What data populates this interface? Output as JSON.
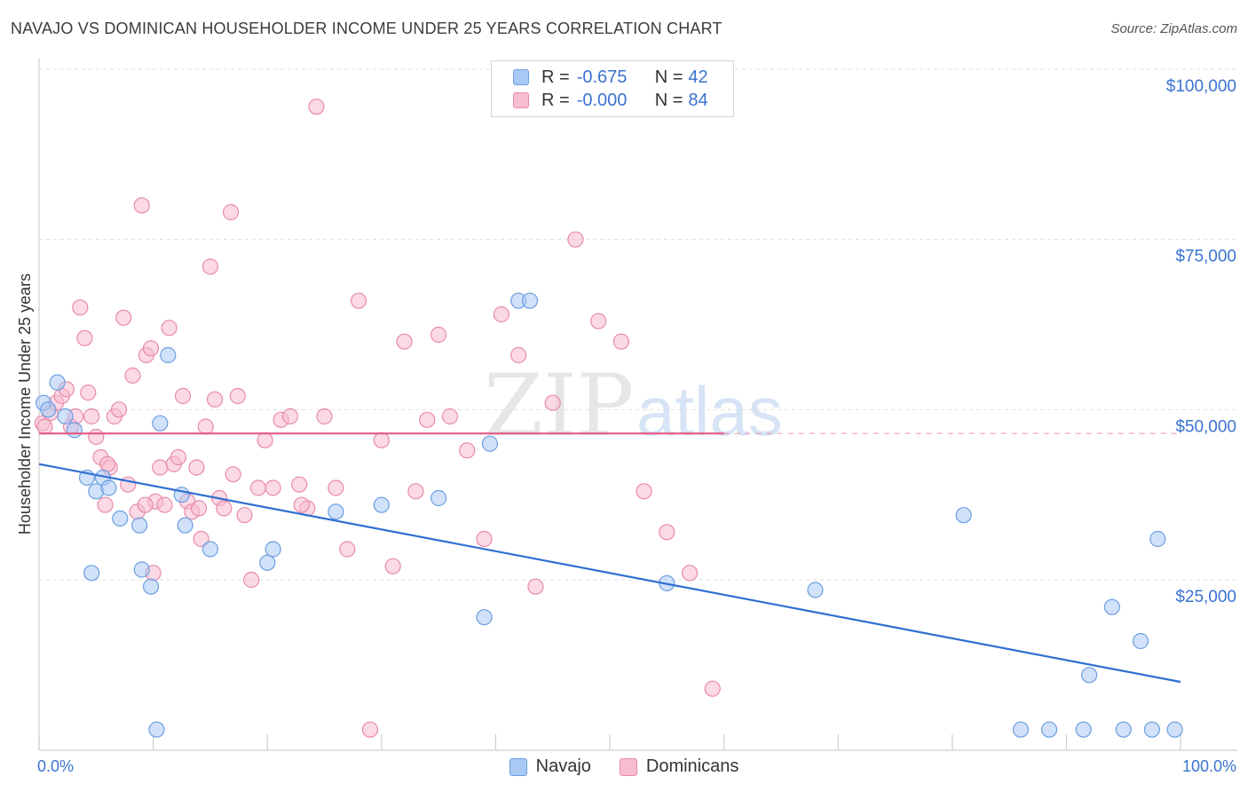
{
  "title": "NAVAJO VS DOMINICAN HOUSEHOLDER INCOME UNDER 25 YEARS CORRELATION CHART",
  "source": "Source: ZipAtlas.com",
  "watermark": {
    "zip": "ZIP",
    "atlas": "atlas"
  },
  "legend": {
    "rows": [
      {
        "r_label": "R = ",
        "r_value": "-0.675",
        "n_label": "N = ",
        "n_value": "42",
        "color": "#a9c9f4",
        "border": "#6b9ee0"
      },
      {
        "r_label": "R = ",
        "r_value": "-0.000",
        "n_label": "N = ",
        "n_value": "84",
        "color": "#f7bcd0",
        "border": "#e88aa9"
      }
    ]
  },
  "bottom_legend": {
    "navajo": "Navajo",
    "dominicans": "Dominicans"
  },
  "chart_data": {
    "type": "scatter",
    "title": "NAVAJO VS DOMINICAN HOUSEHOLDER INCOME UNDER 25 YEARS CORRELATION CHART",
    "xlabel": "",
    "ylabel": "Householder Income Under 25 years",
    "xlim": [
      0,
      100
    ],
    "ylim": [
      0,
      105000
    ],
    "x_tick_labels": [
      "0.0%",
      "100.0%"
    ],
    "y_ticks": [
      25000,
      50000,
      75000,
      100000
    ],
    "y_tick_labels": [
      "$25,000",
      "$50,000",
      "$75,000",
      "$100,000"
    ],
    "grid": true,
    "series": [
      {
        "name": "Navajo",
        "color": "#6b9ee0",
        "fill": "#a9c9f4",
        "trend": {
          "x": [
            0,
            100
          ],
          "y": [
            42000,
            10000
          ],
          "color": "#2f6fd1"
        },
        "x": [
          0.4,
          0.8,
          1.6,
          2.3,
          3.1,
          4.2,
          5.0,
          5.6,
          4.6,
          6.1,
          7.1,
          8.8,
          9.0,
          9.8,
          10.3,
          10.6,
          11.3,
          12.5,
          12.8,
          15.0,
          20.0,
          20.5,
          26.0,
          30.0,
          39.0,
          42.0,
          43.0,
          35.0,
          39.5,
          55.0,
          68.0,
          81.0,
          86.0,
          88.5,
          91.5,
          92.0,
          94.0,
          95.0,
          96.5,
          97.5,
          98.0,
          99.5
        ],
        "y": [
          51000,
          50000,
          54000,
          49000,
          47000,
          40000,
          38000,
          40000,
          26000,
          38500,
          34000,
          33000,
          26500,
          24000,
          3000,
          48000,
          58000,
          37500,
          33000,
          29500,
          27500,
          29500,
          35000,
          36000,
          19500,
          66000,
          66000,
          37000,
          45000,
          24500,
          23500,
          34500,
          3000,
          3000,
          3000,
          11000,
          21000,
          3000,
          16000,
          3000,
          31000,
          3000
        ]
      },
      {
        "name": "Dominicans",
        "color": "#e88aa9",
        "fill": "#f7bcd0",
        "trend": {
          "x": [
            0,
            60
          ],
          "y": [
            46500,
            46500
          ],
          "dash_to": 100,
          "color": "#e55b86"
        },
        "x": [
          0.3,
          0.5,
          1.0,
          1.5,
          2.0,
          2.4,
          2.8,
          3.2,
          3.6,
          4.0,
          4.3,
          4.6,
          5.0,
          5.4,
          5.8,
          6.2,
          6.6,
          7.0,
          7.4,
          7.8,
          8.2,
          8.6,
          9.0,
          9.4,
          9.8,
          10.2,
          10.6,
          11.0,
          11.4,
          11.8,
          12.2,
          12.6,
          13.0,
          13.4,
          13.8,
          14.2,
          14.6,
          15.0,
          15.4,
          15.8,
          16.2,
          16.8,
          17.4,
          18.0,
          18.6,
          19.2,
          19.8,
          20.5,
          21.2,
          22.0,
          22.8,
          23.5,
          24.3,
          25.0,
          26.0,
          27.0,
          28.0,
          29.0,
          30.0,
          31.0,
          32.0,
          33.0,
          34.0,
          35.0,
          36.0,
          37.5,
          39.0,
          40.5,
          42.0,
          43.5,
          45.0,
          47.0,
          49.0,
          51.0,
          53.0,
          55.0,
          57.0,
          59.0,
          6.0,
          9.3,
          10.0,
          14.0,
          17.0,
          23.0
        ],
        "y": [
          48000,
          47500,
          49500,
          51000,
          52000,
          53000,
          47500,
          49000,
          65000,
          60500,
          52500,
          49000,
          46000,
          43000,
          36000,
          41500,
          49000,
          50000,
          63500,
          39000,
          55000,
          35000,
          80000,
          58000,
          59000,
          36500,
          41500,
          36000,
          62000,
          42000,
          43000,
          52000,
          36500,
          35000,
          41500,
          31000,
          47500,
          71000,
          51500,
          37000,
          35500,
          79000,
          52000,
          34500,
          25000,
          38500,
          45500,
          38500,
          48500,
          49000,
          39000,
          35500,
          94500,
          49000,
          38500,
          29500,
          66000,
          3000,
          45500,
          27000,
          60000,
          38000,
          48500,
          61000,
          49000,
          44000,
          31000,
          64000,
          58000,
          24000,
          51000,
          75000,
          63000,
          60000,
          38000,
          32000,
          26000,
          9000,
          42000,
          36000,
          26000,
          35500,
          40500,
          36000
        ]
      }
    ]
  }
}
